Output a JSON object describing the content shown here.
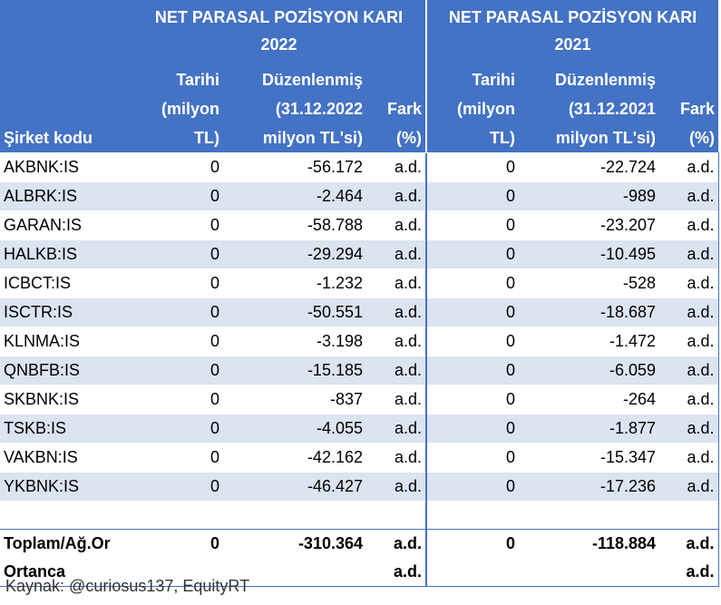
{
  "header": {
    "group_2022_line1": "NET PARASAL POZİSYON KARI",
    "group_2022_line2": "2022",
    "group_2021_line1": "NET PARASAL POZİSYON KARI",
    "group_2021_line2": "2021",
    "col_code": "Şirket kodu",
    "col_date_l1": "Tarihi",
    "col_date_l2": "(milyon",
    "col_date_l3": "TL)",
    "col_adj_2022_l1": "Düzenlenmiş",
    "col_adj_2022_l2": "(31.12.2022",
    "col_adj_2022_l3": "milyon TL'si)",
    "col_adj_2021_l1": "Düzenlenmiş",
    "col_adj_2021_l2": "(31.12.2021",
    "col_adj_2021_l3": "milyon TL'si)",
    "col_diff_l1": "Fark",
    "col_diff_l2": "(%)"
  },
  "rows": [
    {
      "code": "AKBNK:IS",
      "d22": "0",
      "a22": "-56.172",
      "f22": "a.d.",
      "d21": "0",
      "a21": "-22.724",
      "f21": "a.d."
    },
    {
      "code": "ALBRK:IS",
      "d22": "0",
      "a22": "-2.464",
      "f22": "a.d.",
      "d21": "0",
      "a21": "-989",
      "f21": "a.d."
    },
    {
      "code": "GARAN:IS",
      "d22": "0",
      "a22": "-58.788",
      "f22": "a.d.",
      "d21": "0",
      "a21": "-23.207",
      "f21": "a.d."
    },
    {
      "code": "HALKB:IS",
      "d22": "0",
      "a22": "-29.294",
      "f22": "a.d.",
      "d21": "0",
      "a21": "-10.495",
      "f21": "a.d."
    },
    {
      "code": "ICBCT:IS",
      "d22": "0",
      "a22": "-1.232",
      "f22": "a.d.",
      "d21": "0",
      "a21": "-528",
      "f21": "a.d."
    },
    {
      "code": "ISCTR:IS",
      "d22": "0",
      "a22": "-50.551",
      "f22": "a.d.",
      "d21": "0",
      "a21": "-18.687",
      "f21": "a.d."
    },
    {
      "code": "KLNMA:IS",
      "d22": "0",
      "a22": "-3.198",
      "f22": "a.d.",
      "d21": "0",
      "a21": "-1.472",
      "f21": "a.d."
    },
    {
      "code": "QNBFB:IS",
      "d22": "0",
      "a22": "-15.185",
      "f22": "a.d.",
      "d21": "0",
      "a21": "-6.059",
      "f21": "a.d."
    },
    {
      "code": "SKBNK:IS",
      "d22": "0",
      "a22": "-837",
      "f22": "a.d.",
      "d21": "0",
      "a21": "-264",
      "f21": "a.d."
    },
    {
      "code": "TSKB:IS",
      "d22": "0",
      "a22": "-4.055",
      "f22": "a.d.",
      "d21": "0",
      "a21": "-1.877",
      "f21": "a.d."
    },
    {
      "code": "VAKBN:IS",
      "d22": "0",
      "a22": "-42.162",
      "f22": "a.d.",
      "d21": "0",
      "a21": "-15.347",
      "f21": "a.d."
    },
    {
      "code": "YKBNK:IS",
      "d22": "0",
      "a22": "-46.427",
      "f22": "a.d.",
      "d21": "0",
      "a21": "-17.236",
      "f21": "a.d."
    }
  ],
  "total": {
    "label": "Toplam/Ağ.Or",
    "d22": "0",
    "a22": "-310.364",
    "f22": "a.d.",
    "d21": "0",
    "a21": "-118.884",
    "f21": "a.d."
  },
  "median": {
    "label": "Ortanca",
    "f22": "a.d.",
    "f21": "a.d."
  },
  "source": "Kaynak: @curiosus137, EquityRT",
  "colors": {
    "header_bg": "#4472c4",
    "header_text": "#ffffff",
    "band": "#dce3f1"
  }
}
